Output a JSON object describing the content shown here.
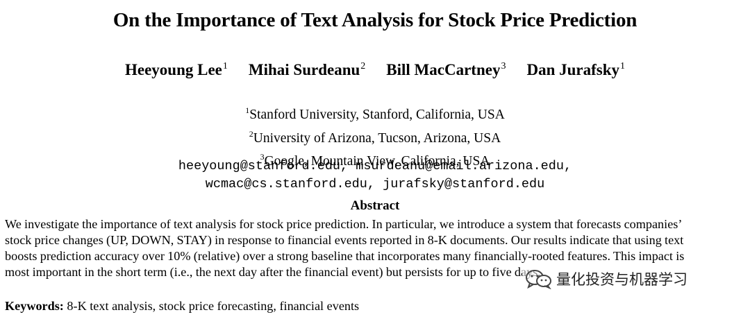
{
  "paper": {
    "title": "On the Importance of Text Analysis for Stock Price Prediction",
    "authors": [
      {
        "name": "Heeyoung Lee",
        "affil": "1"
      },
      {
        "name": "Mihai Surdeanu",
        "affil": "2"
      },
      {
        "name": "Bill MacCartney",
        "affil": "3"
      },
      {
        "name": "Dan Jurafsky",
        "affil": "1"
      }
    ],
    "affiliations": [
      {
        "mark": "1",
        "text": "Stanford University, Stanford, California, USA"
      },
      {
        "mark": "2",
        "text": "University of Arizona, Tucson, Arizona, USA"
      },
      {
        "mark": "3",
        "text": "Google, Mountain View, California, USA"
      }
    ],
    "emails": [
      "heeyoung@stanford.edu, msurdeanu@email.arizona.edu,",
      "wcmac@cs.stanford.edu, jurafsky@stanford.edu"
    ],
    "abstract_heading": "Abstract",
    "abstract_lines": [
      "We investigate the importance of text analysis for stock price prediction. In particular, we introduce a system that forecasts companies’",
      "stock price changes (UP, DOWN, STAY) in response to financial events reported in 8-K documents. Our results indicate that using text",
      "boosts prediction accuracy over 10% (relative) over a strong baseline that incorporates many financially-rooted features. This impact is",
      "most important in the short term (i.e., the next day after the financial event) but persists for up to five days."
    ],
    "keywords_label": "Keywords:",
    "keywords_text": "8-K text analysis, stock price forecasting, financial events"
  },
  "watermark": {
    "text": "量化投资与机器学习",
    "icon": "wechat-icon"
  }
}
